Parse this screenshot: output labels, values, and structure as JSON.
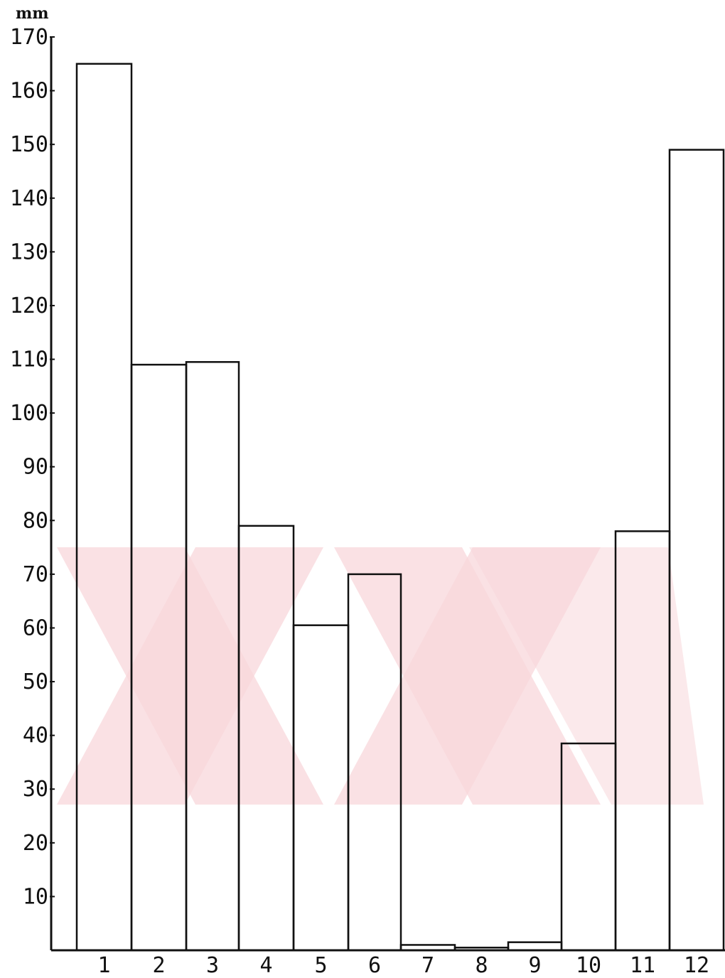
{
  "chart_data": {
    "type": "bar",
    "ylabel": "mm",
    "xlabel": "",
    "ylim": [
      0,
      170
    ],
    "yticks": [
      "170",
      "160",
      "150",
      "140",
      "130",
      "120",
      "110",
      "100",
      "90",
      "80",
      "70",
      "60",
      "50",
      "40",
      "30",
      "20",
      "10"
    ],
    "categories": [
      "1",
      "2",
      "3",
      "4",
      "5",
      "6",
      "7",
      "8",
      "9",
      "10",
      "11",
      "12"
    ],
    "values": [
      165,
      109,
      109.5,
      79,
      60.5,
      70,
      1,
      0.5,
      1.5,
      38.5,
      78,
      149
    ],
    "grid": false,
    "legend": "none"
  },
  "colors": {
    "ink": "#111111",
    "watermark": "#f8d7db",
    "background": "#ffffff"
  }
}
